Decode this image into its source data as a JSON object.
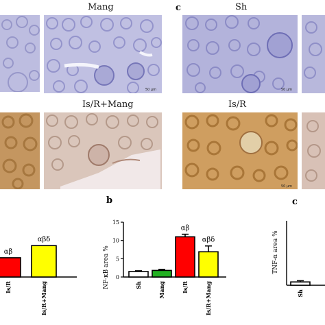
{
  "micrographs": {
    "label_mang": "Mang",
    "label_sh": "Sh",
    "label_isr_mang": "Is/R+Mang",
    "label_isr": "Is/R",
    "panel_c_top": "c",
    "scale_text": "50 μm",
    "colors": {
      "tissue_blue": "#b8b8dc",
      "tissue_brown": "#c79a62",
      "tissue_mixed": "#d8c3b8"
    }
  },
  "charts": {
    "panel_b": "b",
    "panel_c": "c",
    "ylabel_b": "NF-κB area %",
    "ylabel_c": "TNF-α area %"
  },
  "chart_data": [
    {
      "type": "bar",
      "panel": "a (partial)",
      "categories": [
        "Is/R",
        "Is/R+Mang"
      ],
      "values": [
        5.4,
        8.8
      ],
      "annotations": [
        "αβ",
        "αβδ"
      ],
      "colors": [
        "#ff0000",
        "#ffff00"
      ]
    },
    {
      "type": "bar",
      "panel": "b",
      "ylabel": "NF-κB area %",
      "categories": [
        "Sh",
        "Mang",
        "Is/R",
        "Is/R+Mang"
      ],
      "values": [
        1.5,
        1.8,
        11.0,
        6.9
      ],
      "errors": [
        0.2,
        0.3,
        0.7,
        1.6
      ],
      "annotations": [
        "",
        "",
        "αβ",
        "αβδ"
      ],
      "colors": [
        "#ffffff",
        "#22b022",
        "#ff0000",
        "#ffff00"
      ],
      "ylim": [
        0,
        15
      ],
      "yticks": [
        0,
        5,
        10,
        15
      ]
    },
    {
      "type": "bar",
      "panel": "c (partial)",
      "ylabel": "TNF-α area %",
      "categories": [
        "Sh"
      ],
      "values": [
        0.8
      ],
      "errors": [
        0.3
      ],
      "colors": [
        "#ffffff"
      ]
    }
  ]
}
